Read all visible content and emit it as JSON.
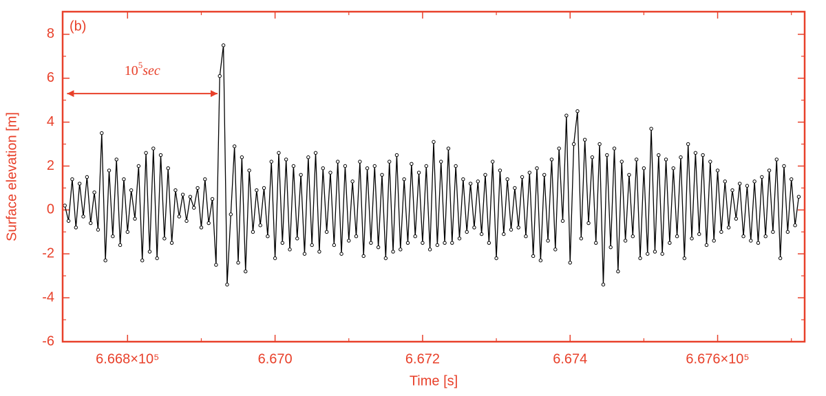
{
  "chart_data": {
    "type": "line",
    "panel_label": "(b)",
    "xlabel": "Time [s]",
    "ylabel": "Surface elevation [m]",
    "color": "#e8402a",
    "line_color": "#000000",
    "xlim": [
      666712,
      667718
    ],
    "ylim": [
      -6,
      9.03
    ],
    "xticks": [
      {
        "value": 666800,
        "label": "6.668×10⁵"
      },
      {
        "value": 667000,
        "label": "6.670"
      },
      {
        "value": 667200,
        "label": "6.672"
      },
      {
        "value": 667400,
        "label": "6.674"
      },
      {
        "value": 667600,
        "label": "6.676×10⁵"
      }
    ],
    "xminorticks": [
      666900,
      667100,
      667300,
      667500,
      667700
    ],
    "yticks": [
      -6,
      -4,
      -2,
      0,
      2,
      4,
      6,
      8
    ],
    "yminorticks": [
      -5,
      -3,
      -1,
      1,
      3,
      5,
      7
    ],
    "annotation": {
      "base": "10",
      "exponent": "5",
      "unit": "sec",
      "from": 666718,
      "to": 666922,
      "y": 5.3
    },
    "series": [
      {
        "name": "Surface elevation",
        "color": "#000000",
        "x": [
          666715,
          666720,
          666725,
          666730,
          666735,
          666740,
          666745,
          666750,
          666755,
          666760,
          666765,
          666770,
          666775,
          666780,
          666785,
          666790,
          666795,
          666800,
          666805,
          666810,
          666815,
          666820,
          666825,
          666830,
          666835,
          666840,
          666845,
          666850,
          666855,
          666860,
          666865,
          666870,
          666875,
          666880,
          666885,
          666890,
          666895,
          666900,
          666905,
          666910,
          666915,
          666920,
          666925,
          666930,
          666935,
          666940,
          666945,
          666950,
          666955,
          666960,
          666965,
          666970,
          666975,
          666980,
          666985,
          666990,
          666995,
          667000,
          667005,
          667010,
          667015,
          667020,
          667025,
          667030,
          667035,
          667040,
          667045,
          667050,
          667055,
          667060,
          667065,
          667070,
          667075,
          667080,
          667085,
          667090,
          667095,
          667100,
          667105,
          667110,
          667115,
          667120,
          667125,
          667130,
          667135,
          667140,
          667145,
          667150,
          667155,
          667160,
          667165,
          667170,
          667175,
          667180,
          667185,
          667190,
          667195,
          667200,
          667205,
          667210,
          667215,
          667220,
          667225,
          667230,
          667235,
          667240,
          667245,
          667250,
          667255,
          667260,
          667265,
          667270,
          667275,
          667280,
          667285,
          667290,
          667295,
          667300,
          667305,
          667310,
          667315,
          667320,
          667325,
          667330,
          667335,
          667340,
          667345,
          667350,
          667355,
          667360,
          667365,
          667370,
          667375,
          667380,
          667385,
          667390,
          667395,
          667400,
          667405,
          667410,
          667415,
          667420,
          667425,
          667430,
          667435,
          667440,
          667445,
          667450,
          667455,
          667460,
          667465,
          667470,
          667475,
          667480,
          667485,
          667490,
          667495,
          667500,
          667505,
          667510,
          667515,
          667520,
          667525,
          667530,
          667535,
          667540,
          667545,
          667550,
          667555,
          667560,
          667565,
          667570,
          667575,
          667580,
          667585,
          667590,
          667595,
          667600,
          667605,
          667610,
          667615,
          667620,
          667625,
          667630,
          667635,
          667640,
          667645,
          667650,
          667655,
          667660,
          667665,
          667670,
          667675,
          667680,
          667685,
          667690,
          667695,
          667700,
          667705,
          667710
        ],
        "values": [
          0.2,
          -0.5,
          1.4,
          -0.8,
          1.2,
          -0.3,
          1.5,
          -0.6,
          0.8,
          -0.9,
          3.5,
          -2.3,
          1.8,
          -1.2,
          2.3,
          -1.6,
          1.4,
          -1.0,
          0.9,
          -0.4,
          2.0,
          -2.3,
          2.6,
          -1.9,
          2.8,
          -2.2,
          2.5,
          -1.3,
          1.9,
          -1.5,
          0.9,
          -0.3,
          0.7,
          -0.5,
          0.6,
          0.1,
          1.0,
          -0.8,
          1.4,
          -0.6,
          0.5,
          -2.5,
          6.1,
          7.5,
          -3.4,
          -0.2,
          2.9,
          -2.4,
          2.4,
          -2.8,
          1.8,
          -1.0,
          0.9,
          -0.7,
          1.0,
          -1.2,
          2.2,
          -2.2,
          2.6,
          -1.5,
          2.3,
          -1.8,
          2.0,
          -1.3,
          1.6,
          -2.0,
          2.4,
          -1.6,
          2.6,
          -1.9,
          1.9,
          -1.0,
          1.7,
          -1.6,
          2.2,
          -2.0,
          2.0,
          -1.4,
          1.3,
          -1.2,
          2.2,
          -2.1,
          1.9,
          -1.5,
          2.0,
          -1.7,
          1.6,
          -2.2,
          2.2,
          -1.9,
          2.5,
          -1.8,
          1.4,
          -1.5,
          2.1,
          -1.2,
          1.7,
          -1.5,
          2.0,
          -1.8,
          3.1,
          -1.6,
          2.2,
          -1.5,
          2.8,
          -1.5,
          2.0,
          -1.3,
          1.4,
          -1.0,
          1.2,
          -0.8,
          1.3,
          -1.1,
          1.6,
          -1.5,
          2.2,
          -2.2,
          1.8,
          -1.1,
          1.4,
          -0.9,
          1.0,
          -0.8,
          1.5,
          -1.2,
          1.7,
          -2.1,
          1.9,
          -2.3,
          1.6,
          -1.4,
          2.3,
          -1.8,
          2.8,
          -0.5,
          4.3,
          -2.4,
          3.0,
          4.5,
          -1.3,
          3.2,
          -0.6,
          2.4,
          -1.5,
          3.0,
          -3.4,
          2.5,
          -1.7,
          2.8,
          -2.8,
          2.2,
          -1.4,
          1.6,
          -1.2,
          2.3,
          -2.2,
          1.9,
          -2.0,
          3.7,
          -1.9,
          2.5,
          -2.0,
          2.3,
          -1.5,
          1.9,
          -1.2,
          2.4,
          -2.2,
          3.0,
          -1.3,
          2.6,
          -1.1,
          2.5,
          -1.6,
          2.2,
          -1.4,
          1.8,
          -1.0,
          1.3,
          -0.8,
          0.9,
          -0.4,
          1.2,
          -1.2,
          1.1,
          -1.4,
          1.3,
          -1.5,
          1.5,
          -1.2,
          1.8,
          -1.0,
          2.3,
          -2.2,
          2.0,
          -1.0,
          1.4,
          -0.7,
          0.6
        ]
      }
    ]
  }
}
